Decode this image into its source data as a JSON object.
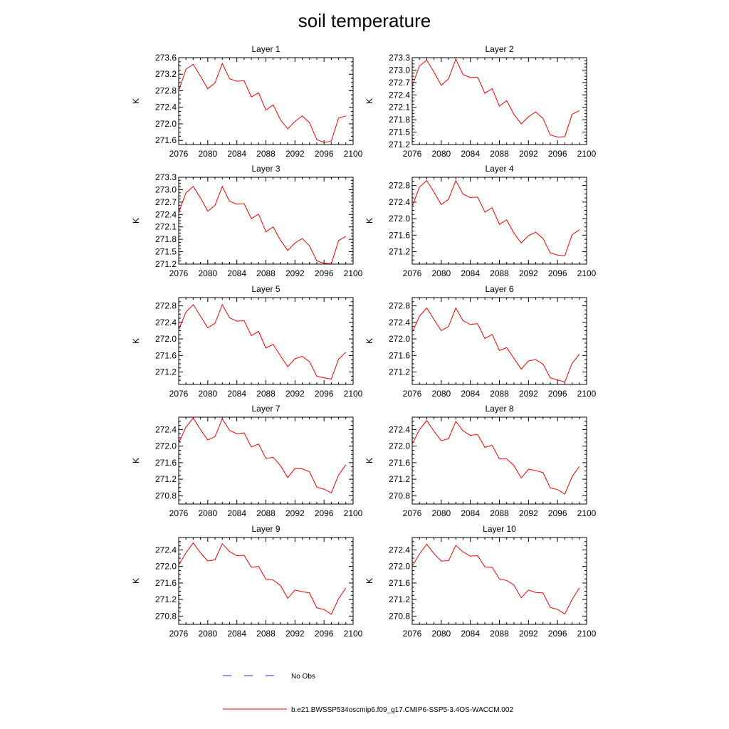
{
  "title": "soil temperature",
  "legend": {
    "obs_label": "No Obs",
    "obs_color": "#2233cc",
    "model_label": "b.e21.BWSSP534oscmip6.f09_g17.CMIP6-SSP5-3.4OS-WACCM.002",
    "model_color": "#ee0000"
  },
  "chart_data": [
    {
      "type": "line",
      "title": "Layer 1",
      "ylabel": "K",
      "xlim": [
        2076,
        2100
      ],
      "ylim": [
        271.5,
        273.6
      ],
      "xticks": [
        2076,
        2080,
        2084,
        2088,
        2092,
        2096,
        2100
      ],
      "yticks": [
        271.6,
        272.0,
        272.4,
        272.8,
        273.2,
        273.6
      ],
      "ytick_labels": [
        "271.6",
        "272.0",
        "272.4",
        "272.8",
        "273.2",
        "273.6"
      ],
      "x": [
        2076,
        2077,
        2078,
        2079,
        2080,
        2081,
        2082,
        2083,
        2084,
        2085,
        2086,
        2087,
        2088,
        2089,
        2090,
        2091,
        2092,
        2093,
        2094,
        2095,
        2096,
        2097,
        2098,
        2099
      ],
      "series": [
        {
          "values": [
            272.8,
            273.32,
            273.44,
            273.15,
            272.85,
            272.99,
            273.46,
            273.09,
            273.03,
            273.04,
            272.65,
            272.75,
            272.33,
            272.46,
            272.1,
            271.88,
            272.06,
            272.19,
            272.03,
            271.62,
            271.55,
            271.58,
            272.14,
            272.19
          ]
        }
      ]
    },
    {
      "type": "line",
      "title": "Layer 2",
      "ylabel": "K",
      "xlim": [
        2076,
        2100
      ],
      "ylim": [
        271.2,
        273.3
      ],
      "xticks": [
        2076,
        2080,
        2084,
        2088,
        2092,
        2096,
        2100
      ],
      "yticks": [
        271.2,
        271.5,
        271.8,
        272.1,
        272.4,
        272.7,
        273.0,
        273.3
      ],
      "ytick_labels": [
        "271.2",
        "271.5",
        "271.8",
        "272.1",
        "272.4",
        "272.7",
        "273.0",
        "273.3"
      ],
      "x": [
        2076,
        2077,
        2078,
        2079,
        2080,
        2081,
        2082,
        2083,
        2084,
        2085,
        2086,
        2087,
        2088,
        2089,
        2090,
        2091,
        2092,
        2093,
        2094,
        2095,
        2096,
        2097,
        2098,
        2099
      ],
      "series": [
        {
          "values": [
            272.62,
            273.1,
            273.24,
            272.95,
            272.63,
            272.79,
            273.26,
            272.89,
            272.82,
            272.83,
            272.44,
            272.55,
            272.13,
            272.26,
            271.93,
            271.7,
            271.87,
            271.99,
            271.83,
            271.43,
            271.38,
            271.39,
            271.93,
            272.02
          ]
        }
      ]
    },
    {
      "type": "line",
      "title": "Layer 3",
      "ylabel": "K",
      "xlim": [
        2076,
        2100
      ],
      "ylim": [
        271.2,
        273.3
      ],
      "xticks": [
        2076,
        2080,
        2084,
        2088,
        2092,
        2096,
        2100
      ],
      "yticks": [
        271.2,
        271.5,
        271.8,
        272.1,
        272.4,
        272.7,
        273.0,
        273.3
      ],
      "ytick_labels": [
        "271.2",
        "271.5",
        "271.8",
        "272.1",
        "272.4",
        "272.7",
        "273.0",
        "273.3"
      ],
      "x": [
        2076,
        2077,
        2078,
        2079,
        2080,
        2081,
        2082,
        2083,
        2084,
        2085,
        2086,
        2087,
        2088,
        2089,
        2090,
        2091,
        2092,
        2093,
        2094,
        2095,
        2096,
        2097,
        2098,
        2099
      ],
      "series": [
        {
          "values": [
            272.45,
            272.92,
            273.08,
            272.8,
            272.48,
            272.62,
            273.08,
            272.72,
            272.65,
            272.66,
            272.3,
            272.41,
            271.98,
            272.1,
            271.78,
            271.53,
            271.71,
            271.82,
            271.64,
            271.28,
            271.22,
            271.21,
            271.77,
            271.87
          ]
        }
      ]
    },
    {
      "type": "line",
      "title": "Layer 4",
      "ylabel": "K",
      "xlim": [
        2076,
        2100
      ],
      "ylim": [
        270.9,
        273.0
      ],
      "xticks": [
        2076,
        2080,
        2084,
        2088,
        2092,
        2096,
        2100
      ],
      "yticks": [
        271.2,
        271.6,
        272.0,
        272.4,
        272.8
      ],
      "ytick_labels": [
        "271.2",
        "271.6",
        "272.0",
        "272.4",
        "272.8"
      ],
      "x": [
        2076,
        2077,
        2078,
        2079,
        2080,
        2081,
        2082,
        2083,
        2084,
        2085,
        2086,
        2087,
        2088,
        2089,
        2090,
        2091,
        2092,
        2093,
        2094,
        2095,
        2096,
        2097,
        2098,
        2099
      ],
      "series": [
        {
          "values": [
            272.3,
            272.76,
            272.92,
            272.64,
            272.34,
            272.47,
            272.92,
            272.59,
            272.51,
            272.52,
            272.16,
            272.26,
            271.86,
            271.97,
            271.65,
            271.41,
            271.59,
            271.67,
            271.52,
            271.17,
            271.12,
            271.1,
            271.61,
            271.73
          ]
        }
      ]
    },
    {
      "type": "line",
      "title": "Layer 5",
      "ylabel": "K",
      "xlim": [
        2076,
        2100
      ],
      "ylim": [
        270.9,
        273.0
      ],
      "xticks": [
        2076,
        2080,
        2084,
        2088,
        2092,
        2096,
        2100
      ],
      "yticks": [
        271.2,
        271.6,
        272.0,
        272.4,
        272.8
      ],
      "ytick_labels": [
        "271.2",
        "271.6",
        "272.0",
        "272.4",
        "272.8"
      ],
      "x": [
        2076,
        2077,
        2078,
        2079,
        2080,
        2081,
        2082,
        2083,
        2084,
        2085,
        2086,
        2087,
        2088,
        2089,
        2090,
        2091,
        2092,
        2093,
        2094,
        2095,
        2096,
        2097,
        2098,
        2099
      ],
      "series": [
        {
          "values": [
            272.22,
            272.65,
            272.83,
            272.55,
            272.27,
            272.38,
            272.83,
            272.51,
            272.43,
            272.44,
            272.08,
            272.18,
            271.78,
            271.87,
            271.59,
            271.33,
            271.52,
            271.58,
            271.45,
            271.1,
            271.06,
            271.03,
            271.51,
            271.68
          ]
        }
      ]
    },
    {
      "type": "line",
      "title": "Layer 6",
      "ylabel": "K",
      "xlim": [
        2076,
        2100
      ],
      "ylim": [
        270.9,
        273.0
      ],
      "xticks": [
        2076,
        2080,
        2084,
        2088,
        2092,
        2096,
        2100
      ],
      "yticks": [
        271.2,
        271.6,
        272.0,
        272.4,
        272.8
      ],
      "ytick_labels": [
        "271.2",
        "271.6",
        "272.0",
        "272.4",
        "272.8"
      ],
      "x": [
        2076,
        2077,
        2078,
        2079,
        2080,
        2081,
        2082,
        2083,
        2084,
        2085,
        2086,
        2087,
        2088,
        2089,
        2090,
        2091,
        2092,
        2093,
        2094,
        2095,
        2096,
        2097,
        2098,
        2099
      ],
      "series": [
        {
          "values": [
            272.16,
            272.55,
            272.75,
            272.47,
            272.2,
            272.3,
            272.75,
            272.44,
            272.35,
            272.37,
            272.01,
            272.11,
            271.72,
            271.79,
            271.53,
            271.27,
            271.47,
            271.5,
            271.39,
            271.06,
            271.01,
            270.96,
            271.41,
            271.63
          ]
        }
      ]
    },
    {
      "type": "line",
      "title": "Layer 7",
      "ylabel": "K",
      "xlim": [
        2076,
        2100
      ],
      "ylim": [
        270.6,
        272.7
      ],
      "xticks": [
        2076,
        2080,
        2084,
        2088,
        2092,
        2096,
        2100
      ],
      "yticks": [
        270.8,
        271.2,
        271.6,
        272.0,
        272.4
      ],
      "ytick_labels": [
        "270.8",
        "271.2",
        "271.6",
        "272.0",
        "272.4"
      ],
      "x": [
        2076,
        2077,
        2078,
        2079,
        2080,
        2081,
        2082,
        2083,
        2084,
        2085,
        2086,
        2087,
        2088,
        2089,
        2090,
        2091,
        2092,
        2093,
        2094,
        2095,
        2096,
        2097,
        2098,
        2099
      ],
      "series": [
        {
          "values": [
            272.08,
            272.46,
            272.68,
            272.4,
            272.15,
            272.23,
            272.66,
            272.38,
            272.3,
            272.32,
            271.98,
            272.05,
            271.7,
            271.73,
            271.53,
            271.24,
            271.46,
            271.45,
            271.38,
            271.01,
            270.96,
            270.87,
            271.3,
            271.55
          ]
        }
      ]
    },
    {
      "type": "line",
      "title": "Layer 8",
      "ylabel": "K",
      "xlim": [
        2076,
        2100
      ],
      "ylim": [
        270.6,
        272.7
      ],
      "xticks": [
        2076,
        2080,
        2084,
        2088,
        2092,
        2096,
        2100
      ],
      "yticks": [
        270.8,
        271.2,
        271.6,
        272.0,
        272.4
      ],
      "ytick_labels": [
        "270.8",
        "271.2",
        "271.6",
        "272.0",
        "272.4"
      ],
      "x": [
        2076,
        2077,
        2078,
        2079,
        2080,
        2081,
        2082,
        2083,
        2084,
        2085,
        2086,
        2087,
        2088,
        2089,
        2090,
        2091,
        2092,
        2093,
        2094,
        2095,
        2096,
        2097,
        2098,
        2099
      ],
      "series": [
        {
          "values": [
            272.05,
            272.4,
            272.62,
            272.36,
            272.13,
            272.18,
            272.6,
            272.37,
            272.26,
            272.28,
            271.97,
            272.02,
            271.69,
            271.69,
            271.53,
            271.23,
            271.44,
            271.41,
            271.36,
            270.99,
            270.95,
            270.84,
            271.26,
            271.51
          ]
        }
      ]
    },
    {
      "type": "line",
      "title": "Layer 9",
      "ylabel": "K",
      "xlim": [
        2076,
        2100
      ],
      "ylim": [
        270.6,
        272.7
      ],
      "xticks": [
        2076,
        2080,
        2084,
        2088,
        2092,
        2096,
        2100
      ],
      "yticks": [
        270.8,
        271.2,
        271.6,
        272.0,
        272.4
      ],
      "ytick_labels": [
        "270.8",
        "271.2",
        "271.6",
        "272.0",
        "272.4"
      ],
      "x": [
        2076,
        2077,
        2078,
        2079,
        2080,
        2081,
        2082,
        2083,
        2084,
        2085,
        2086,
        2087,
        2088,
        2089,
        2090,
        2091,
        2092,
        2093,
        2094,
        2095,
        2096,
        2097,
        2098,
        2099
      ],
      "series": [
        {
          "values": [
            272.03,
            272.33,
            272.57,
            272.33,
            272.13,
            272.16,
            272.55,
            272.36,
            272.26,
            272.27,
            271.98,
            272.0,
            271.69,
            271.67,
            271.54,
            271.23,
            271.43,
            271.39,
            271.36,
            271.0,
            270.96,
            270.84,
            271.22,
            271.48
          ]
        }
      ]
    },
    {
      "type": "line",
      "title": "Layer 10",
      "ylabel": "K",
      "xlim": [
        2076,
        2100
      ],
      "ylim": [
        270.6,
        272.7
      ],
      "xticks": [
        2076,
        2080,
        2084,
        2088,
        2092,
        2096,
        2100
      ],
      "yticks": [
        270.8,
        271.2,
        271.6,
        272.0,
        272.4
      ],
      "ytick_labels": [
        "270.8",
        "271.2",
        "271.6",
        "272.0",
        "272.4"
      ],
      "x": [
        2076,
        2077,
        2078,
        2079,
        2080,
        2081,
        2082,
        2083,
        2084,
        2085,
        2086,
        2087,
        2088,
        2089,
        2090,
        2091,
        2092,
        2093,
        2094,
        2095,
        2096,
        2097,
        2098,
        2099
      ],
      "series": [
        {
          "values": [
            272.01,
            272.3,
            272.54,
            272.31,
            272.13,
            272.14,
            272.51,
            272.35,
            272.25,
            272.26,
            271.99,
            271.98,
            271.7,
            271.66,
            271.55,
            271.24,
            271.43,
            271.37,
            271.36,
            271.01,
            270.96,
            270.85,
            271.2,
            271.48
          ]
        }
      ]
    }
  ]
}
